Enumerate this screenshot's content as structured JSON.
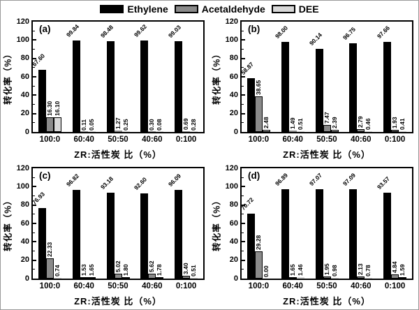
{
  "legend": {
    "items": [
      {
        "label": "Ethylene",
        "color": "#000000"
      },
      {
        "label": "Acetaldehyde",
        "color": "#8a8a8a"
      },
      {
        "label": "DEE",
        "color": "#d8d8d8"
      }
    ]
  },
  "axes": {
    "ylabel": "转化率（%）",
    "xlabel": "ZR:活性炭 比（%）",
    "ylim": [
      0,
      120
    ],
    "yticks": [
      0,
      20,
      40,
      60,
      80,
      100,
      120
    ],
    "minor_yticks": [
      10,
      30,
      50,
      70,
      90,
      110
    ],
    "categories": [
      "100:0",
      "60:40",
      "50:50",
      "40:60",
      "0:100"
    ]
  },
  "chart_data": [
    {
      "type": "bar",
      "panel": "(a)",
      "title": "",
      "xlabel": "ZR:活性炭 比（%）",
      "ylabel": "转化率（%）",
      "ylim": [
        0,
        120
      ],
      "categories": [
        "100:0",
        "60:40",
        "50:50",
        "40:60",
        "0:100"
      ],
      "series": [
        {
          "name": "Ethylene",
          "values": [
            67.6,
            99.84,
            98.48,
            99.62,
            99.03
          ]
        },
        {
          "name": "Acetaldehyde",
          "values": [
            16.3,
            0.11,
            1.27,
            0.3,
            0.69
          ]
        },
        {
          "name": "DEE",
          "values": [
            16.1,
            0.05,
            0.25,
            0.08,
            0.28
          ]
        }
      ]
    },
    {
      "type": "bar",
      "panel": "(b)",
      "title": "",
      "xlabel": "ZR:活性炭 比（%）",
      "ylabel": "转化率（%）",
      "ylim": [
        0,
        120
      ],
      "categories": [
        "100:0",
        "60:40",
        "50:50",
        "40:60",
        "0:100"
      ],
      "series": [
        {
          "name": "Ethylene",
          "values": [
            58.87,
            98.0,
            90.14,
            96.75,
            97.66
          ]
        },
        {
          "name": "Acetaldehyde",
          "values": [
            38.65,
            1.49,
            7.47,
            2.79,
            1.93
          ]
        },
        {
          "name": "DEE",
          "values": [
            2.48,
            0.51,
            2.39,
            0.46,
            0.41
          ]
        }
      ]
    },
    {
      "type": "bar",
      "panel": "(c)",
      "title": "",
      "xlabel": "ZR:活性炭 比（%）",
      "ylabel": "转化率（%）",
      "ylim": [
        0,
        120
      ],
      "categories": [
        "100:0",
        "60:40",
        "50:50",
        "40:60",
        "0:100"
      ],
      "series": [
        {
          "name": "Ethylene",
          "values": [
            76.93,
            96.82,
            93.18,
            92.6,
            96.09
          ]
        },
        {
          "name": "Acetaldehyde",
          "values": [
            22.33,
            1.53,
            5.02,
            5.62,
            3.4
          ]
        },
        {
          "name": "DEE",
          "values": [
            0.74,
            1.65,
            1.8,
            1.78,
            0.51
          ]
        }
      ]
    },
    {
      "type": "bar",
      "panel": "(d)",
      "title": "",
      "xlabel": "ZR:活性炭 比（%）",
      "ylabel": "转化率（%）",
      "ylim": [
        0,
        120
      ],
      "categories": [
        "100:0",
        "60:40",
        "50:50",
        "40:60",
        "0:100"
      ],
      "series": [
        {
          "name": "Ethylene",
          "values": [
            70.72,
            96.89,
            97.07,
            97.09,
            93.57
          ]
        },
        {
          "name": "Acetaldehyde",
          "values": [
            29.28,
            1.65,
            1.95,
            2.13,
            4.84
          ]
        },
        {
          "name": "DEE",
          "values": [
            0.0,
            1.46,
            0.98,
            0.78,
            1.59
          ]
        }
      ]
    }
  ]
}
